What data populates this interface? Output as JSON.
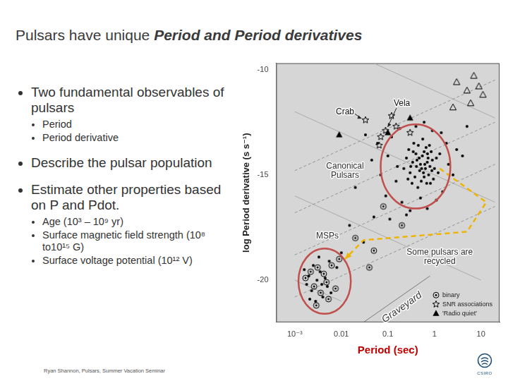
{
  "title": [
    {
      "text": "Pulsars have unique ",
      "italic": false
    },
    {
      "text": "Period and Period derivatives",
      "italic": true
    }
  ],
  "bullets": [
    {
      "text": "Two fundamental observables of pulsars",
      "sub": [
        "Period",
        "Period derivative"
      ]
    },
    {
      "text": "Describe the pulsar population"
    },
    {
      "text": "Estimate other properties based on P and Pdot.",
      "sub": [
        "Age (10³ – 10⁹ yr)",
        "Surface magnetic field strength (10⁸ to10¹⁵ G)",
        "Surface voltage potential (10¹² V)"
      ]
    }
  ],
  "footer": "Ryan Shannon, Pulsars, Summer Vacation Seminar",
  "logo": "CSIRO",
  "chart_data": {
    "type": "scatter",
    "log": "x",
    "grid": false,
    "legend": "lower right",
    "x_label": "Period (sec)",
    "y_label": "log Period derivative (s s⁻¹)",
    "xlim": [
      0.0004,
      25
    ],
    "ylim": [
      -22,
      -9.7
    ],
    "xticks": [
      {
        "value": 0.001,
        "label": "10⁻³"
      },
      0.01,
      0.1,
      1,
      10
    ],
    "yticks": [
      -10,
      -15,
      -20
    ],
    "series": [
      {
        "marker": "dot",
        "color": "#000000",
        "x": [
          0.25,
          0.31,
          0.35,
          0.42,
          0.48,
          0.55,
          0.62,
          0.71,
          0.8,
          0.9,
          0.38,
          0.45,
          0.52,
          0.66,
          0.75,
          0.28,
          0.33,
          0.58,
          0.85,
          1.0,
          1.1,
          0.3,
          0.4,
          0.5,
          0.6,
          0.7,
          0.95,
          0.22,
          0.47,
          0.68,
          0.36,
          0.56,
          0.78,
          1.2,
          0.27,
          0.44,
          0.64,
          0.88,
          0.34,
          0.53,
          0.73,
          0.41,
          0.6,
          0.82,
          1.3,
          0.1,
          0.15,
          0.09,
          0.12,
          0.18,
          0.2,
          0.3,
          0.5,
          1.5,
          2.0,
          1.8,
          2.5,
          3.0,
          0.06,
          0.07,
          0.16,
          0.4,
          0.6,
          0.9,
          1.4,
          0.25,
          0.7,
          1.1,
          0.045,
          0.033,
          0.11,
          0.02,
          0.015,
          0.05,
          0.03,
          4.0,
          5.0,
          0.0016,
          0.0018,
          0.002,
          0.0023,
          0.0025,
          0.003,
          0.0035,
          0.004,
          0.0045,
          0.005,
          0.0055,
          0.006,
          0.0028,
          0.0033,
          0.008,
          0.01,
          0.0021,
          0.0038
        ],
        "values": [
          -14.2,
          -14.6,
          -13.9,
          -14.3,
          -14.8,
          -14.1,
          -14.5,
          -14.0,
          -14.6,
          -14.3,
          -15.1,
          -13.6,
          -15.3,
          -13.7,
          -15.0,
          -13.8,
          -15.4,
          -14.9,
          -13.9,
          -14.7,
          -14.2,
          -14.9,
          -14.0,
          -14.5,
          -13.9,
          -14.4,
          -15.2,
          -14.7,
          -14.2,
          -15.4,
          -13.5,
          -13.3,
          -13.6,
          -14.9,
          -15.2,
          -15.6,
          -14.7,
          -14.8,
          -14.4,
          -14.7,
          -14.2,
          -14.6,
          -15.1,
          -15.4,
          -14.0,
          -14.1,
          -15.3,
          -16.0,
          -13.2,
          -12.8,
          -16.3,
          -16.7,
          -16.1,
          -15.8,
          -14.5,
          -13.5,
          -15.0,
          -13.8,
          -13.5,
          -15.0,
          -14.6,
          -12.7,
          -12.5,
          -12.9,
          -13.0,
          -16.9,
          -16.6,
          -16.2,
          -14.3,
          -13.1,
          -17.1,
          -15.6,
          -17.4,
          -17.0,
          -18.2,
          -14.1,
          -12.7,
          -19.5,
          -20.2,
          -19.8,
          -20.5,
          -19.3,
          -20.0,
          -19.6,
          -20.8,
          -19.9,
          -20.3,
          -19.1,
          -20.6,
          -21.0,
          -18.9,
          -19.4,
          -18.7,
          -20.9,
          -20.2
        ]
      },
      {
        "name": "binary",
        "marker": "circle-dot",
        "color": "#000000",
        "x": [
          0.0017,
          0.0022,
          0.0026,
          0.0031,
          0.0036,
          0.0042,
          0.0048,
          0.0053,
          0.0062,
          0.0075,
          0.009,
          0.0029,
          0.02,
          0.05,
          0.04,
          0.2,
          0.08
        ],
        "values": [
          -19.9,
          -19.6,
          -20.3,
          -19.4,
          -20.6,
          -19.7,
          -20.1,
          -20.9,
          -19.3,
          -20.4,
          -19.0,
          -21.2,
          -18.0,
          -18.6,
          -19.4,
          -17.4,
          -16.5
        ]
      },
      {
        "name": "SNR associations",
        "marker": "star",
        "color": "#000000",
        "x": [
          0.033,
          0.089,
          0.15,
          0.07,
          0.3,
          0.12,
          0.065
        ],
        "values": [
          -12.4,
          -12.9,
          -12.7,
          -13.2,
          -13.0,
          -12.2,
          -13.6
        ]
      },
      {
        "name": "'Radio quiet'",
        "marker": "triangle",
        "color": "#000000",
        "x": [
          0.009,
          0.1,
          0.3
        ],
        "values": [
          -13.1,
          -13.0,
          -12.3
        ]
      },
      {
        "marker": "triangle-open",
        "color": "#000000",
        "x": [
          3,
          5,
          7,
          9,
          11,
          2.5,
          6
        ],
        "values": [
          -10.6,
          -11.0,
          -10.3,
          -10.8,
          -11.2,
          -11.8,
          -11.6
        ]
      },
      {
        "type": "line",
        "line_style": "dashed",
        "color": "#8c8c8c",
        "x": [
          0.001,
          20
        ],
        "values": [
          -14.8,
          -10.5
        ]
      },
      {
        "type": "line",
        "line_style": "dashed",
        "color": "#8c8c8c",
        "x": [
          0.001,
          20
        ],
        "values": [
          -16.8,
          -12.5
        ]
      },
      {
        "type": "line",
        "line_style": "dashed",
        "color": "#8c8c8c",
        "x": [
          0.001,
          20
        ],
        "values": [
          -18.8,
          -14.5
        ]
      },
      {
        "type": "line",
        "line_style": "dashed",
        "color": "#8c8c8c",
        "x": [
          0.001,
          20
        ],
        "values": [
          -20.8,
          -16.5
        ]
      },
      {
        "type": "line",
        "line_style": "solid",
        "color": "#a6a6a6",
        "x": [
          0.05,
          20
        ],
        "values": [
          -9.7,
          -12.3
        ]
      },
      {
        "type": "line",
        "line_style": "solid",
        "color": "#a6a6a6",
        "x": [
          0.001,
          20
        ],
        "values": [
          -12.0,
          -16.3
        ]
      },
      {
        "type": "line",
        "line_style": "solid",
        "color": "#a6a6a6",
        "x": [
          0.001,
          10
        ],
        "values": [
          -16.0,
          -20.0
        ]
      },
      {
        "type": "line",
        "line_style": "solid",
        "color": "#a6a6a6",
        "x": [
          0.001,
          0.01
        ],
        "values": [
          -20.0,
          -21.0
        ]
      },
      {
        "type": "line",
        "line_style": "solid",
        "color": "#6e6e6e",
        "x": [
          0.03,
          0.8
        ],
        "values": [
          -22.0,
          -19.8
        ]
      },
      {
        "type": "line",
        "line_style": "dashed",
        "marker": "arrow",
        "color": "#f0b400",
        "x": [
          1.3,
          13,
          5,
          0.03,
          0.012
        ],
        "values": [
          -14.7,
          -16.3,
          -17.7,
          -18.1,
          -19.0
        ]
      }
    ],
    "highlights": [
      {
        "xrange": [
          0.07,
          2.2
        ],
        "yrange": [
          -16.6,
          -12.6
        ],
        "color": "#c0504d"
      },
      {
        "xrange": [
          0.0012,
          0.016
        ],
        "yrange": [
          -21.6,
          -18.5
        ],
        "color": "#c0504d"
      }
    ],
    "annotations": [
      {
        "text": "Crab",
        "x": 0.012,
        "y": -12.0,
        "target": {
          "x": 0.033,
          "y": -12.4
        }
      },
      {
        "text": "Vela",
        "x": 0.2,
        "y": -11.6,
        "target": {
          "x": 0.089,
          "y": -12.9
        }
      },
      {
        "lines": [
          "Canonical",
          "Pulsars"
        ],
        "x": 0.012,
        "y": -14.8
      },
      {
        "text": "MSPs",
        "x": 0.005,
        "y": -17.9
      },
      {
        "lines": [
          "Some pulsars are",
          "recycled"
        ],
        "x": 1.3,
        "y": -18.9
      },
      {
        "text": "Graveyard",
        "x": 0.2,
        "y": -21.3,
        "x2": 0.8,
        "y2": -20.37
      }
    ]
  }
}
